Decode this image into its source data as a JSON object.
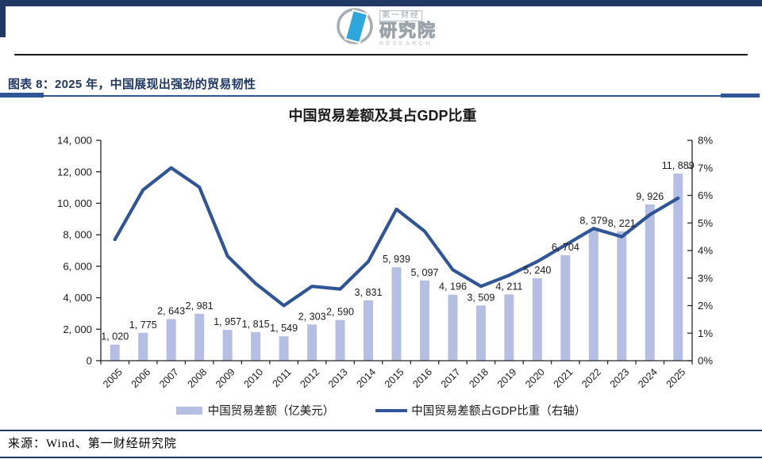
{
  "header": {
    "logo": {
      "brand_top": "第一财经",
      "brand_main": "研究院",
      "brand_sub": "RESEARCH"
    }
  },
  "figure": {
    "caption": "图表 8：2025 年，中国展现出强劲的贸易韧性"
  },
  "chart_data": {
    "type": "bar+line combo",
    "title": "中国贸易差额及其占GDP比重",
    "categories": [
      "2005",
      "2006",
      "2007",
      "2008",
      "2009",
      "2010",
      "2011",
      "2012",
      "2013",
      "2014",
      "2015",
      "2016",
      "2017",
      "2018",
      "2019",
      "2020",
      "2021",
      "2022",
      "2023",
      "2024",
      "2025"
    ],
    "series": [
      {
        "name": "中国贸易差额（亿美元）",
        "type": "bar",
        "axis": "left",
        "color": "#b5bfe3",
        "values": [
          1020,
          1775,
          2643,
          2981,
          1957,
          1815,
          1549,
          2303,
          2590,
          3831,
          5939,
          5097,
          4196,
          3509,
          4211,
          5240,
          6704,
          8379,
          8221,
          9926,
          11889
        ],
        "labels": [
          "1, 020",
          "1, 775",
          "2, 643",
          "2, 981",
          "1, 957",
          "1, 815",
          "1, 549",
          "2, 303",
          "2, 590",
          "3, 831",
          "5, 939",
          "5, 097",
          "4, 196",
          "3, 509",
          "4, 211",
          "5, 240",
          "6, 704",
          "8, 379",
          "8, 221",
          "9, 926",
          "11, 889"
        ]
      },
      {
        "name": "中国贸易差额占GDP比重（右轴）",
        "type": "line",
        "axis": "right",
        "color": "#2f5597",
        "values_pct": [
          4.4,
          6.2,
          7.0,
          6.3,
          3.8,
          2.8,
          2.0,
          2.7,
          2.6,
          3.6,
          5.5,
          4.7,
          3.3,
          2.7,
          3.1,
          3.6,
          4.2,
          4.8,
          4.5,
          5.3,
          5.9
        ]
      }
    ],
    "left_axis": {
      "min": 0,
      "max": 14000,
      "tick_step": 2000,
      "tick_labels": [
        "0",
        "2, 000",
        "4, 000",
        "6, 000",
        "8, 000",
        "10, 000",
        "12, 000",
        "14, 000"
      ]
    },
    "right_axis": {
      "min": 0,
      "max": 8,
      "tick_step": 1,
      "tick_labels": [
        "0%",
        "1%",
        "2%",
        "3%",
        "4%",
        "5%",
        "6%",
        "7%",
        "8%"
      ]
    },
    "legend_position": "bottom",
    "grid": false
  },
  "footer": {
    "source_note": "来源：Wind、第一财经研究院"
  },
  "colors": {
    "accent_navy": "#1f3864",
    "rule_blue": "#2f5597",
    "bar_fill": "#b5bfe3",
    "line_stroke": "#2f5597",
    "logo_blue": "#2ea8dc",
    "logo_gray": "#9aa2aa"
  }
}
